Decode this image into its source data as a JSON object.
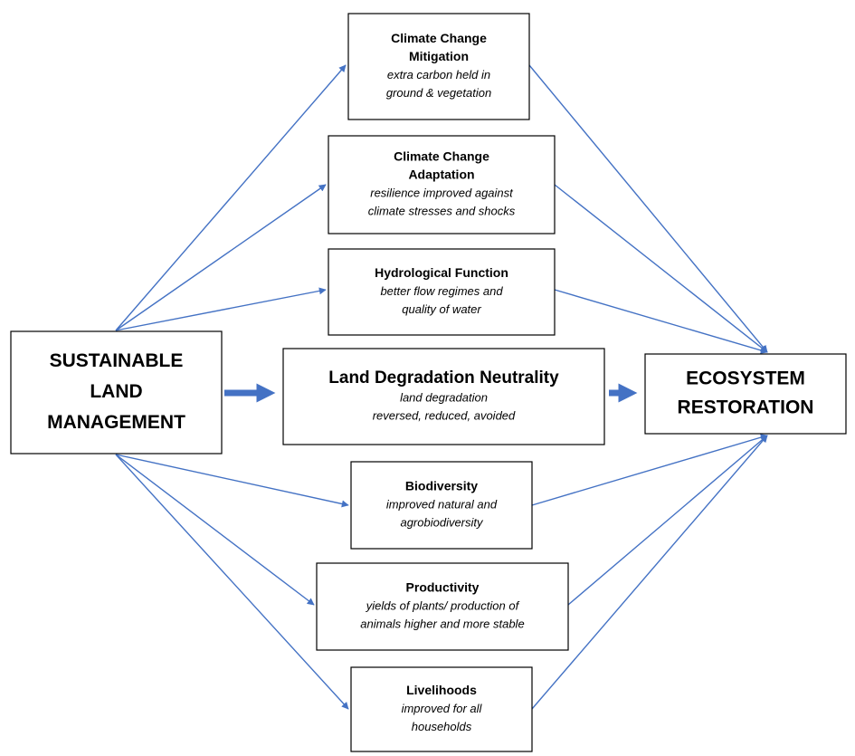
{
  "nodes": [
    {
      "title": [
        "SUSTAINABLE",
        "LAND",
        "MANAGEMENT"
      ],
      "text": []
    },
    {
      "title": [
        "Climate Change",
        "Mitigation"
      ],
      "text": [
        "extra carbon held in",
        "ground & vegetation"
      ]
    },
    {
      "title": [
        "Climate Change",
        "Adaptation"
      ],
      "text": [
        "resilience improved against",
        "climate stresses and shocks"
      ]
    },
    {
      "title": [
        "Hydrological Function"
      ],
      "text": [
        "better flow regimes and",
        "quality of water"
      ]
    },
    {
      "title": [
        "Land Degradation Neutrality"
      ],
      "text": [
        "land degradation",
        "reversed, reduced, avoided"
      ]
    },
    {
      "title": [
        "Biodiversity"
      ],
      "text": [
        "improved natural and",
        "agrobiodiversity"
      ]
    },
    {
      "title": [
        "Productivity"
      ],
      "text": [
        "yields of plants/ production of",
        "animals higher and more stable"
      ]
    },
    {
      "title": [
        "Livelihoods"
      ],
      "text": [
        "improved for all",
        "households"
      ]
    },
    {
      "title": [
        "ECOSYSTEM",
        "RESTORATION"
      ],
      "text": []
    }
  ]
}
